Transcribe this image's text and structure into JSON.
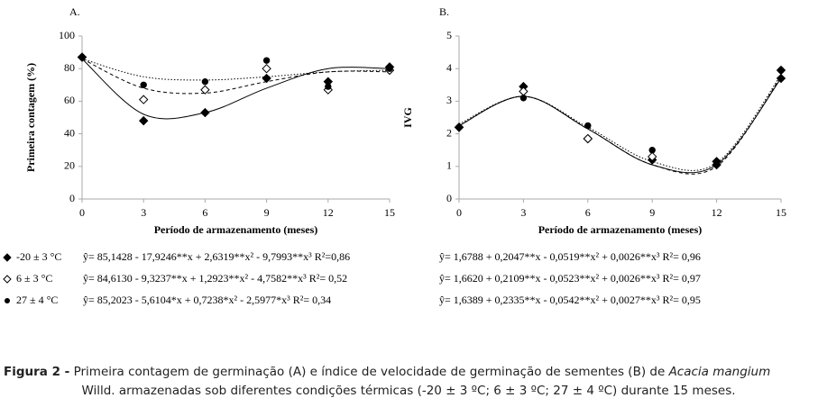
{
  "chart_data": [
    {
      "type": "scatter",
      "label": "A.",
      "xlabel": "Período de armazenamento (meses)",
      "ylabel": "Primeira contagem (%)",
      "x": [
        0,
        3,
        6,
        9,
        12,
        15
      ],
      "xlim": [
        0,
        15
      ],
      "xticks": [
        0,
        3,
        6,
        9,
        12,
        15
      ],
      "ylim": [
        0,
        100
      ],
      "yticks": [
        0,
        20,
        40,
        60,
        80,
        100
      ],
      "series": [
        {
          "name": "-20 ± 3 °C",
          "marker": "diamond-filled",
          "line": "solid",
          "color": "#000000",
          "values": [
            87,
            48,
            53,
            74,
            72,
            81
          ],
          "fit_values": [
            86,
            52,
            53,
            68,
            80,
            80
          ],
          "equation": "ŷ= 85,1428 - 17,9246**x + 2,6319**x² - 9,7993**x³ R²=0,86"
        },
        {
          "name": "6 ± 3 °C",
          "marker": "diamond-open",
          "line": "dashed",
          "color": "#000000",
          "values": [
            87,
            61,
            67,
            80,
            67,
            79
          ],
          "fit_values": [
            86,
            68,
            65,
            72,
            78,
            78
          ],
          "equation": "ŷ= 84,6130 - 9,3237**x + 1,2923**x² - 4,7582**x³ R²= 0,52"
        },
        {
          "name": "27 ± 4 °C",
          "marker": "circle-filled",
          "line": "dotted",
          "color": "#000000",
          "values": [
            87,
            70,
            72,
            85,
            69,
            80
          ],
          "fit_values": [
            86,
            75,
            73,
            75,
            78,
            79
          ],
          "equation": "ŷ= 85,2023 - 5,6104*x + 0,7238*x² - 2,5977*x³ R²= 0,34"
        }
      ]
    },
    {
      "type": "scatter",
      "label": "B.",
      "xlabel": "Período de armazenamento (meses)",
      "ylabel": "IVG",
      "x": [
        0,
        3,
        6,
        9,
        12,
        15
      ],
      "xlim": [
        0,
        15
      ],
      "xticks": [
        0,
        3,
        6,
        9,
        12,
        15
      ],
      "ylim": [
        0,
        5
      ],
      "yticks": [
        0,
        1,
        2,
        3,
        4,
        5
      ],
      "series": [
        {
          "marker": "diamond-filled",
          "line": "solid",
          "color": "#000000",
          "values": [
            2.2,
            3.45,
            1.85,
            1.2,
            1.15,
            3.7
          ],
          "fit_values": [
            2.25,
            3.15,
            2.15,
            1.05,
            1.05,
            3.7
          ],
          "equation": "ŷ= 1,6788 + 0,2047**x - 0,0519**x² + 0,0026**x³ R²= 0,96"
        },
        {
          "marker": "diamond-open",
          "line": "dashed",
          "color": "#000000",
          "values": [
            2.2,
            3.3,
            1.85,
            1.3,
            1.05,
            3.95
          ],
          "fit_values": [
            2.25,
            3.15,
            2.15,
            1.05,
            1.0,
            3.75
          ],
          "equation": "ŷ= 1,6620 + 0,2109**x - 0,0523**x² + 0,0026**x³ R²= 0,97"
        },
        {
          "marker": "circle-filled",
          "line": "dotted",
          "color": "#000000",
          "values": [
            2.2,
            3.1,
            2.25,
            1.5,
            1.05,
            3.95
          ],
          "fit_values": [
            2.3,
            3.15,
            2.2,
            1.15,
            1.1,
            3.8
          ],
          "equation": "ŷ= 1,6389 + 0,2335**x - 0,0542**x² + 0,0027**x³ R²= 0,95"
        }
      ]
    }
  ],
  "caption": {
    "label": "Figura 2 -",
    "text": "Primeira contagem de germinação (A) e índice de velocidade de germinação de sementes (B) de",
    "species": "Acacia mangium",
    "text2": "Willd. armazenadas sob diferentes condições térmicas (-20 ± 3 ºC; 6 ± 3 ºC; 27 ± 4 ºC) durante 15 meses."
  }
}
